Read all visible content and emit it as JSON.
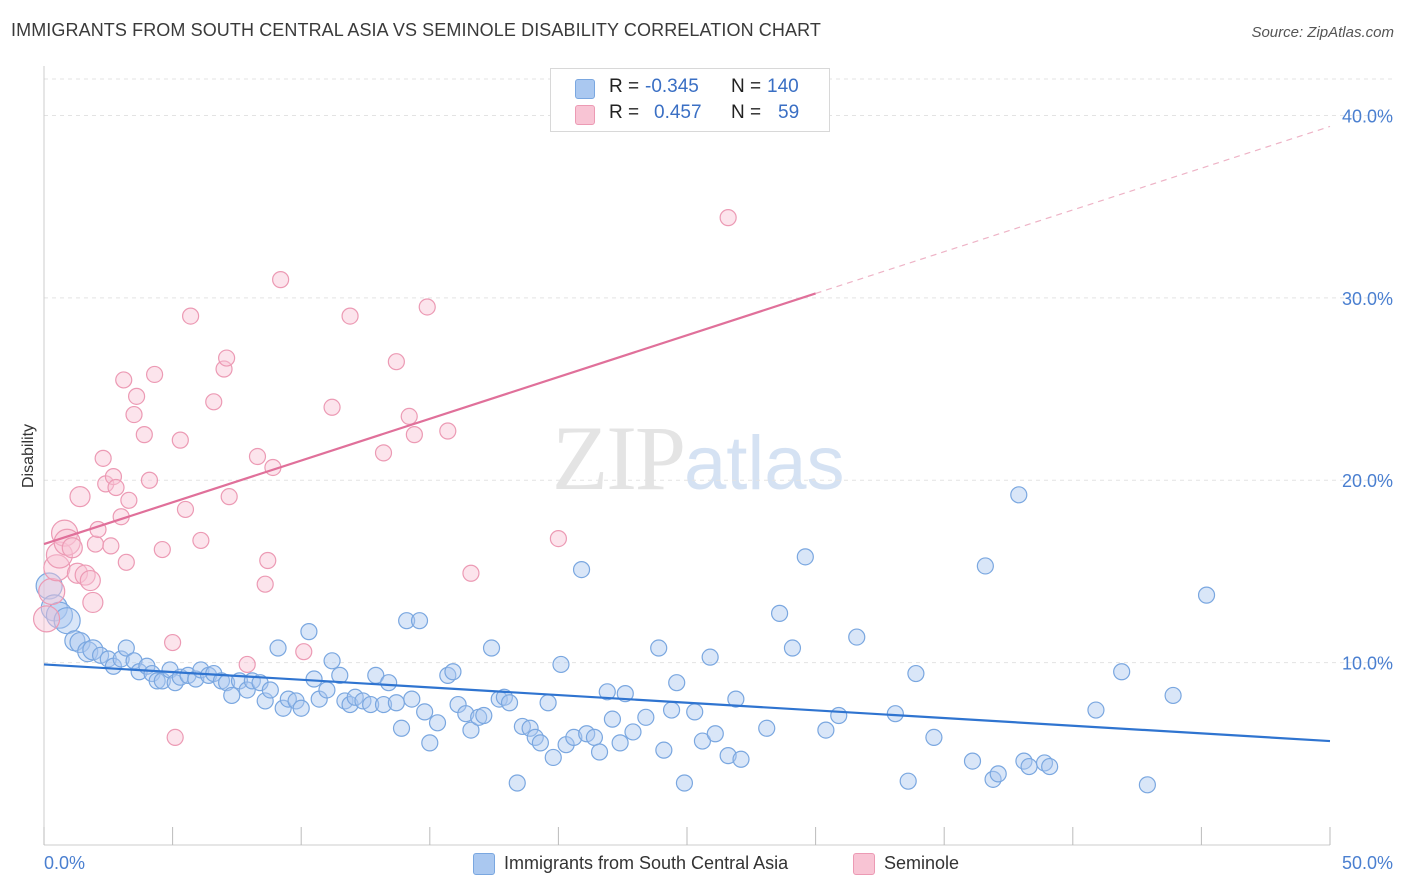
{
  "title": "IMMIGRANTS FROM SOUTH CENTRAL ASIA VS SEMINOLE DISABILITY CORRELATION CHART",
  "source": "Source: ZipAtlas.com",
  "watermark": {
    "zip": "ZIP",
    "atlas": "atlas"
  },
  "legend": {
    "rows": [
      {
        "r_label": "R =",
        "r_value": "-0.345",
        "n_label": "N =",
        "n_value": "140",
        "color": "#aac8f0",
        "border": "#7aa7e0"
      },
      {
        "r_label": "R =",
        "r_value": "0.457",
        "n_label": "N =",
        "n_value": "59",
        "color": "#f8c4d4",
        "border": "#ec9ab4"
      }
    ]
  },
  "bottom_legend": [
    {
      "label": "Immigrants from South Central Asia",
      "color": "#aac8f0",
      "border": "#7aa7e0"
    },
    {
      "label": "Seminole",
      "color": "#f8c4d4",
      "border": "#ec9ab4"
    }
  ],
  "chart_data": {
    "type": "scatter",
    "title": "IMMIGRANTS FROM SOUTH CENTRAL ASIA VS SEMINOLE DISABILITY CORRELATION CHART",
    "xlabel": "",
    "ylabel": "Disability",
    "xlim": [
      0,
      50
    ],
    "ylim": [
      0,
      42
    ],
    "x_tick_labels": [
      "0.0%",
      "50.0%"
    ],
    "y_ticks": [
      10,
      20,
      30,
      40
    ],
    "y_tick_labels": [
      "10.0%",
      "20.0%",
      "30.0%",
      "40.0%"
    ],
    "grid": true,
    "legend_position": "top-center",
    "series": [
      {
        "name": "Immigrants from South Central Asia",
        "color": "#7aa7e0",
        "fill": "#aac8f0",
        "trend": {
          "x0": 0,
          "y0": 9.9,
          "x1": 50,
          "y1": 5.7,
          "dash_from": null
        },
        "points": [
          [
            0.2,
            14.2
          ],
          [
            0.4,
            13.0
          ],
          [
            0.6,
            12.6
          ],
          [
            0.9,
            12.3
          ],
          [
            1.2,
            11.2
          ],
          [
            1.4,
            11.1
          ],
          [
            1.7,
            10.6
          ],
          [
            1.9,
            10.7
          ],
          [
            2.2,
            10.4
          ],
          [
            2.5,
            10.2
          ],
          [
            2.7,
            9.8
          ],
          [
            3.0,
            10.2
          ],
          [
            3.2,
            10.8
          ],
          [
            3.5,
            10.1
          ],
          [
            3.7,
            9.5
          ],
          [
            4.0,
            9.8
          ],
          [
            4.2,
            9.4
          ],
          [
            4.4,
            9.0
          ],
          [
            4.6,
            9.0
          ],
          [
            4.9,
            9.6
          ],
          [
            5.1,
            8.9
          ],
          [
            5.3,
            9.2
          ],
          [
            5.6,
            9.3
          ],
          [
            5.9,
            9.1
          ],
          [
            6.1,
            9.6
          ],
          [
            6.4,
            9.3
          ],
          [
            6.6,
            9.4
          ],
          [
            6.9,
            9.0
          ],
          [
            7.1,
            8.9
          ],
          [
            7.3,
            8.2
          ],
          [
            7.6,
            9.0
          ],
          [
            7.9,
            8.5
          ],
          [
            8.1,
            9.0
          ],
          [
            8.4,
            8.9
          ],
          [
            8.6,
            7.9
          ],
          [
            8.8,
            8.5
          ],
          [
            9.1,
            10.8
          ],
          [
            9.3,
            7.5
          ],
          [
            9.5,
            8.0
          ],
          [
            9.8,
            7.9
          ],
          [
            10.0,
            7.5
          ],
          [
            10.3,
            11.7
          ],
          [
            10.5,
            9.1
          ],
          [
            10.7,
            8.0
          ],
          [
            11.0,
            8.5
          ],
          [
            11.2,
            10.1
          ],
          [
            11.5,
            9.3
          ],
          [
            11.7,
            7.9
          ],
          [
            11.9,
            7.7
          ],
          [
            12.1,
            8.1
          ],
          [
            12.4,
            7.9
          ],
          [
            12.7,
            7.7
          ],
          [
            12.9,
            9.3
          ],
          [
            13.2,
            7.7
          ],
          [
            13.4,
            8.9
          ],
          [
            13.7,
            7.8
          ],
          [
            13.9,
            6.4
          ],
          [
            14.1,
            12.3
          ],
          [
            14.3,
            8.0
          ],
          [
            14.6,
            12.3
          ],
          [
            14.8,
            7.3
          ],
          [
            15.0,
            5.6
          ],
          [
            15.3,
            6.7
          ],
          [
            15.7,
            9.3
          ],
          [
            15.9,
            9.5
          ],
          [
            16.1,
            7.7
          ],
          [
            16.4,
            7.2
          ],
          [
            16.6,
            6.3
          ],
          [
            16.9,
            7.0
          ],
          [
            17.1,
            7.1
          ],
          [
            17.4,
            10.8
          ],
          [
            17.7,
            8.0
          ],
          [
            17.9,
            8.1
          ],
          [
            18.1,
            7.8
          ],
          [
            18.4,
            3.4
          ],
          [
            18.6,
            6.5
          ],
          [
            18.9,
            6.4
          ],
          [
            19.1,
            5.9
          ],
          [
            19.3,
            5.6
          ],
          [
            19.6,
            7.8
          ],
          [
            19.8,
            4.8
          ],
          [
            20.1,
            9.9
          ],
          [
            20.3,
            5.5
          ],
          [
            20.6,
            5.9
          ],
          [
            20.9,
            15.1
          ],
          [
            21.1,
            6.1
          ],
          [
            21.4,
            5.9
          ],
          [
            21.6,
            5.1
          ],
          [
            21.9,
            8.4
          ],
          [
            22.1,
            6.9
          ],
          [
            22.4,
            5.6
          ],
          [
            22.6,
            8.3
          ],
          [
            22.9,
            6.2
          ],
          [
            23.4,
            7.0
          ],
          [
            23.9,
            10.8
          ],
          [
            24.1,
            5.2
          ],
          [
            24.4,
            7.4
          ],
          [
            24.6,
            8.9
          ],
          [
            24.9,
            3.4
          ],
          [
            25.3,
            7.3
          ],
          [
            25.6,
            5.7
          ],
          [
            25.9,
            10.3
          ],
          [
            26.1,
            6.1
          ],
          [
            26.6,
            4.9
          ],
          [
            26.9,
            8.0
          ],
          [
            27.1,
            4.7
          ],
          [
            28.1,
            6.4
          ],
          [
            28.6,
            12.7
          ],
          [
            29.1,
            10.8
          ],
          [
            29.6,
            15.8
          ],
          [
            30.4,
            6.3
          ],
          [
            30.9,
            7.1
          ],
          [
            31.6,
            11.4
          ],
          [
            33.1,
            7.2
          ],
          [
            33.6,
            3.5
          ],
          [
            33.9,
            9.4
          ],
          [
            34.6,
            5.9
          ],
          [
            36.1,
            4.6
          ],
          [
            36.6,
            15.3
          ],
          [
            36.9,
            3.6
          ],
          [
            37.1,
            3.9
          ],
          [
            37.9,
            19.2
          ],
          [
            38.1,
            4.6
          ],
          [
            38.3,
            4.3
          ],
          [
            38.9,
            4.5
          ],
          [
            39.1,
            4.3
          ],
          [
            40.9,
            7.4
          ],
          [
            41.9,
            9.5
          ],
          [
            42.9,
            3.3
          ],
          [
            43.9,
            8.2
          ],
          [
            45.2,
            13.7
          ]
        ]
      },
      {
        "name": "Seminole",
        "color": "#ec9ab4",
        "fill": "#f8c4d4",
        "trend": {
          "x0": 0,
          "y0": 16.5,
          "x1": 50,
          "y1": 39.4,
          "dash_from": 30.0
        },
        "points": [
          [
            0.1,
            12.4
          ],
          [
            0.3,
            13.9
          ],
          [
            0.5,
            15.2
          ],
          [
            0.6,
            15.9
          ],
          [
            0.8,
            17.1
          ],
          [
            0.9,
            16.6
          ],
          [
            1.1,
            16.3
          ],
          [
            1.3,
            14.9
          ],
          [
            1.4,
            19.1
          ],
          [
            1.6,
            14.8
          ],
          [
            1.8,
            14.5
          ],
          [
            1.9,
            13.3
          ],
          [
            2.0,
            16.5
          ],
          [
            2.1,
            17.3
          ],
          [
            2.3,
            21.2
          ],
          [
            2.4,
            19.8
          ],
          [
            2.6,
            16.4
          ],
          [
            2.7,
            20.2
          ],
          [
            2.8,
            19.6
          ],
          [
            3.0,
            18.0
          ],
          [
            3.1,
            25.5
          ],
          [
            3.2,
            15.5
          ],
          [
            3.3,
            18.9
          ],
          [
            3.5,
            23.6
          ],
          [
            3.6,
            24.6
          ],
          [
            3.9,
            22.5
          ],
          [
            4.1,
            20.0
          ],
          [
            4.3,
            25.8
          ],
          [
            4.6,
            16.2
          ],
          [
            5.0,
            11.1
          ],
          [
            5.1,
            5.9
          ],
          [
            5.3,
            22.2
          ],
          [
            5.5,
            18.4
          ],
          [
            5.7,
            29.0
          ],
          [
            6.1,
            16.7
          ],
          [
            6.6,
            24.3
          ],
          [
            7.0,
            26.1
          ],
          [
            7.1,
            26.7
          ],
          [
            7.2,
            19.1
          ],
          [
            7.9,
            9.9
          ],
          [
            8.3,
            21.3
          ],
          [
            8.6,
            14.3
          ],
          [
            8.7,
            15.6
          ],
          [
            8.9,
            20.7
          ],
          [
            9.2,
            31.0
          ],
          [
            10.1,
            10.6
          ],
          [
            11.2,
            24.0
          ],
          [
            11.9,
            29.0
          ],
          [
            13.2,
            21.5
          ],
          [
            13.7,
            26.5
          ],
          [
            14.2,
            23.5
          ],
          [
            14.4,
            22.5
          ],
          [
            14.9,
            29.5
          ],
          [
            15.7,
            22.7
          ],
          [
            16.6,
            14.9
          ],
          [
            20.0,
            16.8
          ],
          [
            26.6,
            34.4
          ]
        ]
      }
    ]
  }
}
